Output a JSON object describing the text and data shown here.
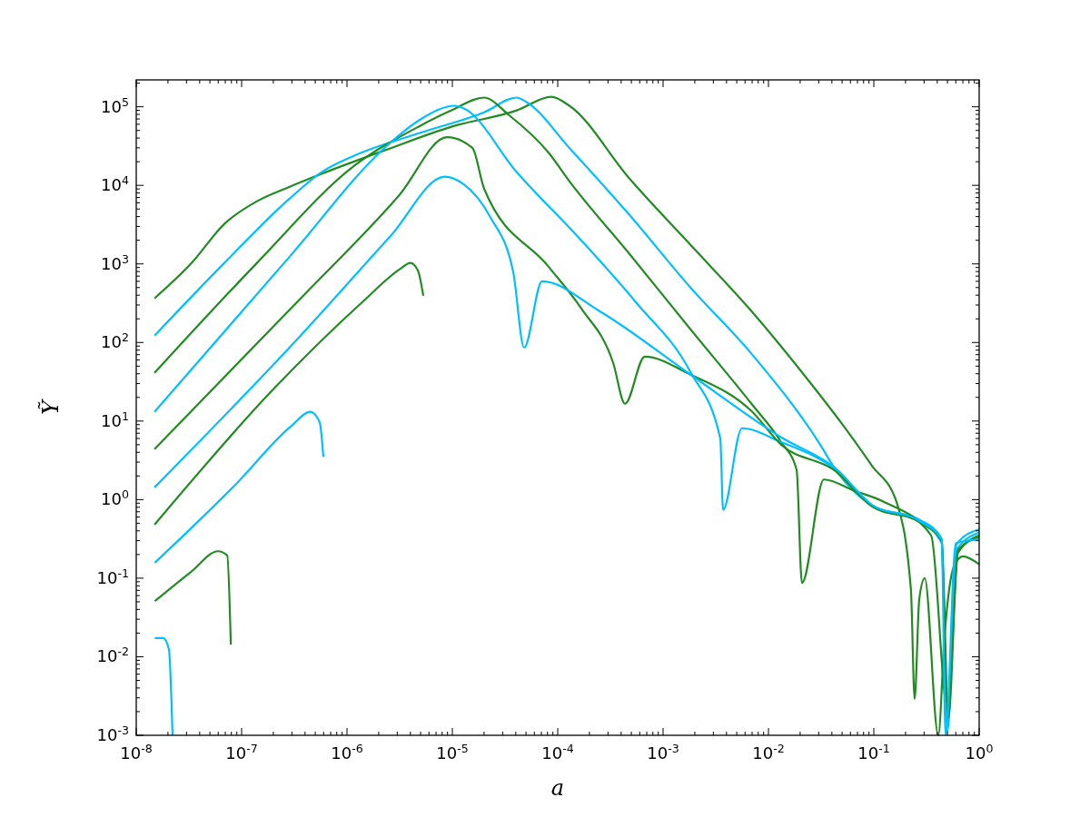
{
  "chart_data": {
    "type": "line",
    "xlabel": "a",
    "ylabel": "Ỹ",
    "log": "xy",
    "grid": false,
    "marker": "none",
    "line_style": "solid",
    "xlim": [
      1e-08,
      1
    ],
    "ylim": [
      0.001,
      220000
    ],
    "xticks": [
      {
        "value": 1e-08,
        "label": "10$^{-8}$"
      },
      {
        "value": 1e-07,
        "label": "10$^{-7}$"
      },
      {
        "value": 1e-06,
        "label": "10$^{-6}$"
      },
      {
        "value": 1e-05,
        "label": "10$^{-5}$"
      },
      {
        "value": 0.0001,
        "label": "10$^{-4}$"
      },
      {
        "value": 0.001,
        "label": "10$^{-3}$"
      },
      {
        "value": 0.01,
        "label": "10$^{-2}$"
      },
      {
        "value": 0.1,
        "label": "10$^{-1}$"
      },
      {
        "value": 1,
        "label": "10$^{0}$"
      }
    ],
    "yticks": [
      {
        "value": 0.001,
        "label": "10$^{-3}$"
      },
      {
        "value": 0.01,
        "label": "10$^{-2}$"
      },
      {
        "value": 0.1,
        "label": "10$^{-1}$"
      },
      {
        "value": 1,
        "label": "10$^{0}$"
      },
      {
        "value": 10,
        "label": "10$^{1}$"
      },
      {
        "value": 100,
        "label": "10$^{2}$"
      },
      {
        "value": 1000,
        "label": "10$^{3}$"
      },
      {
        "value": 10000,
        "label": "10$^{4}$"
      },
      {
        "value": 100000,
        "label": "10$^{5}$"
      }
    ],
    "series": [
      {
        "color": "#228b22",
        "x": [
          1.49e-08,
          3.36e-08,
          6.86e-08,
          1.4e-07,
          2.86e-07,
          5.74e-07,
          2.4e-06,
          9.8e-06,
          4.09e-05,
          8.7e-05,
          0.000129,
          0.00048,
          0.00182,
          0.0069,
          0.0254,
          0.0499,
          0.096,
          0.164,
          0.225,
          0.244,
          0.27,
          0.304,
          0.409,
          0.47,
          0.574,
          0.7,
          1
        ],
        "values": [
          364,
          1030,
          3230,
          6280,
          9600,
          14000,
          28600,
          55700,
          90000,
          134000,
          103000,
          12200,
          1750,
          251,
          29.8,
          9.2,
          2.7,
          0.94,
          0.071,
          0.0029,
          0.054,
          0.1,
          0.001,
          0.019,
          0.14,
          0.19,
          0.15
        ]
      },
      {
        "color": "#00bfff",
        "x": [
          1.49e-08,
          6.86e-08,
          2.86e-07,
          5.74e-07,
          1.17e-06,
          4.8e-06,
          2e-05,
          4.09e-05,
          5.1e-05,
          0.000129,
          0.00048,
          0.00182,
          0.0069,
          0.031,
          0.0434,
          0.096,
          0.275,
          0.44,
          0.5,
          0.61,
          1
        ],
        "values": [
          122,
          1030,
          6800,
          14700,
          23800,
          46000,
          85000,
          131000,
          114000,
          30000,
          4200,
          500,
          72,
          5,
          2.4,
          0.84,
          0.55,
          0.32,
          0.0013,
          0.27,
          0.42
        ]
      },
      {
        "color": "#228b22",
        "x": [
          1.49e-08,
          1.4e-07,
          1.17e-06,
          4.8e-06,
          9.8e-06,
          2e-05,
          3.42e-05,
          8.2e-05,
          0.000129,
          0.00048,
          0.00182,
          0.0069,
          0.0132,
          0.0185,
          0.0208,
          0.0336,
          0.065,
          0.124,
          0.35,
          0.5,
          0.63,
          1
        ],
        "values": [
          41,
          1030,
          17700,
          56000,
          90000,
          131000,
          79000,
          26000,
          11300,
          1340,
          147,
          16.6,
          5.4,
          2.4,
          0.087,
          1.8,
          1.3,
          0.94,
          0.35,
          0.0022,
          0.21,
          0.35
        ]
      },
      {
        "color": "#00bfff",
        "x": [
          1.49e-08,
          2.86e-07,
          2.4e-06,
          4.8e-06,
          1.06e-05,
          1.29e-05,
          4.09e-05,
          0.000167,
          0.00055,
          0.00182,
          0.00349,
          0.00371,
          0.0056,
          0.0132,
          0.0434,
          0.096,
          0.275,
          0.44,
          0.5,
          0.61,
          1
        ],
        "values": [
          13.1,
          1240,
          32000,
          67000,
          103000,
          95000,
          14700,
          2000,
          327,
          42,
          6,
          0.74,
          8.1,
          5.4,
          2.4,
          0.84,
          0.52,
          0.28,
          0.0011,
          0.23,
          0.38
        ]
      },
      {
        "color": "#228b22",
        "x": [
          1.49e-08,
          3.56e-07,
          3.16e-06,
          8.9e-06,
          1.55e-05,
          2e-05,
          8.2e-05,
          0.000167,
          0.000336,
          0.000435,
          0.00067,
          0.00182,
          0.0069,
          0.0132,
          0.0434,
          0.096,
          0.275,
          0.44,
          0.51,
          0.63,
          1
        ],
        "values": [
          4.4,
          354,
          7600,
          41000,
          30000,
          9100,
          920,
          272,
          55,
          16.6,
          66,
          39,
          13.4,
          5,
          2.3,
          0.82,
          0.51,
          0.3,
          0.0017,
          0.23,
          0.33
        ]
      },
      {
        "color": "#00bfff",
        "x": [
          1.49e-08,
          3.56e-07,
          2.6e-06,
          8.5e-06,
          1.27e-05,
          2.3e-05,
          3.78e-05,
          4.8e-05,
          7.1e-05,
          0.000249,
          0.00182,
          0.0132,
          0.0434,
          0.096,
          0.275,
          0.44,
          0.48,
          0.6,
          1
        ],
        "values": [
          1.43,
          119,
          2280,
          12900,
          10400,
          3900,
          790,
          86,
          600,
          251,
          39,
          6.2,
          2.5,
          0.86,
          0.53,
          0.31,
          0.001,
          0.28,
          0.31
        ]
      },
      {
        "color": "#228b22",
        "x": [
          1.49e-08,
          1.96e-07,
          1.43e-06,
          3.16e-06,
          4e-06,
          4.7e-06,
          5.3e-06
        ],
        "values": [
          0.48,
          24.7,
          336,
          853,
          1030,
          830,
          394
        ]
      },
      {
        "color": "#00bfff",
        "x": [
          1.5e-08,
          8.9e-08,
          2.92e-07,
          4.5e-07,
          5.5e-07,
          5.97e-07
        ],
        "values": [
          0.157,
          1.59,
          8.5,
          13.1,
          9.7,
          3.5
        ]
      },
      {
        "color": "#228b22",
        "x": [
          1.5e-08,
          3.3e-08,
          5.97e-08,
          7.3e-08,
          7.9e-08
        ],
        "values": [
          0.051,
          0.12,
          0.22,
          0.195,
          0.0143
        ]
      },
      {
        "color": "#00bfff",
        "x": [
          1.5e-08,
          1.8e-08,
          2.04e-08,
          2.21e-08
        ],
        "values": [
          0.0173,
          0.0173,
          0.0125,
          0.001
        ]
      }
    ]
  }
}
